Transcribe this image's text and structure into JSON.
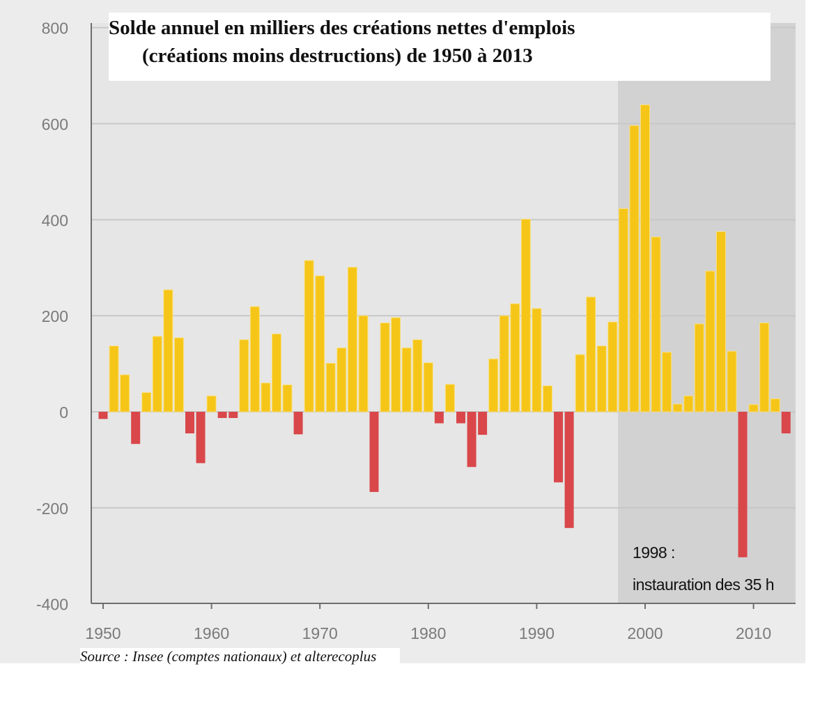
{
  "chart_data": {
    "type": "bar",
    "title_line1": "Solde annuel en milliers des créations nettes d'emplois",
    "title_line2": "(créations moins destructions) de 1950 à 2013",
    "source": "Source : Insee (comptes nationaux) et alterecoplus",
    "annotation_line1": "1998 :",
    "annotation_line2": "instauration des 35 h",
    "highlight_range": [
      1998,
      2013
    ],
    "xlabel": "",
    "ylabel": "",
    "ylim": [
      -400,
      800
    ],
    "yticks": [
      "800",
      "600",
      "400",
      "200",
      "0",
      "-200",
      "-400"
    ],
    "ytick_values": [
      800,
      600,
      400,
      200,
      0,
      -200,
      -400
    ],
    "xticks": [
      "1950",
      "1960",
      "1970",
      "1980",
      "1990",
      "2000",
      "2010"
    ],
    "xtick_values": [
      1950,
      1960,
      1970,
      1980,
      1990,
      2000,
      2010
    ],
    "grid": true,
    "colors": {
      "positive": "#f5c518",
      "positive_edge": "#fbe07a",
      "negative": "#d9474a",
      "plot_bg": "#e6e6e6",
      "highlight_bg": "#d2d2d2",
      "outer_bg": "#ececec",
      "grid": "#c8c8c8",
      "axis": "#6e6e6e",
      "tick_text": "#7a7a7a"
    },
    "years": [
      1950,
      1951,
      1952,
      1953,
      1954,
      1955,
      1956,
      1957,
      1958,
      1959,
      1960,
      1961,
      1962,
      1963,
      1964,
      1965,
      1966,
      1967,
      1968,
      1969,
      1970,
      1971,
      1972,
      1973,
      1974,
      1975,
      1976,
      1977,
      1978,
      1979,
      1980,
      1981,
      1982,
      1983,
      1984,
      1985,
      1986,
      1987,
      1988,
      1989,
      1990,
      1991,
      1992,
      1993,
      1994,
      1995,
      1996,
      1997,
      1998,
      1999,
      2000,
      2001,
      2002,
      2003,
      2004,
      2005,
      2006,
      2007,
      2008,
      2009,
      2010,
      2011,
      2012,
      2013
    ],
    "values": [
      -15,
      137,
      77,
      -67,
      40,
      157,
      254,
      154,
      -45,
      -107,
      33,
      -13,
      -13,
      150,
      219,
      60,
      162,
      56,
      -47,
      315,
      283,
      101,
      133,
      301,
      200,
      -167,
      185,
      196,
      133,
      150,
      102,
      -24,
      57,
      -24,
      -115,
      -48,
      110,
      200,
      225,
      401,
      215,
      54,
      -147,
      -242,
      119,
      239,
      137,
      187,
      423,
      596,
      639,
      364,
      124,
      16,
      33,
      183,
      293,
      375,
      126,
      -303,
      15,
      185,
      27,
      -45
    ]
  }
}
